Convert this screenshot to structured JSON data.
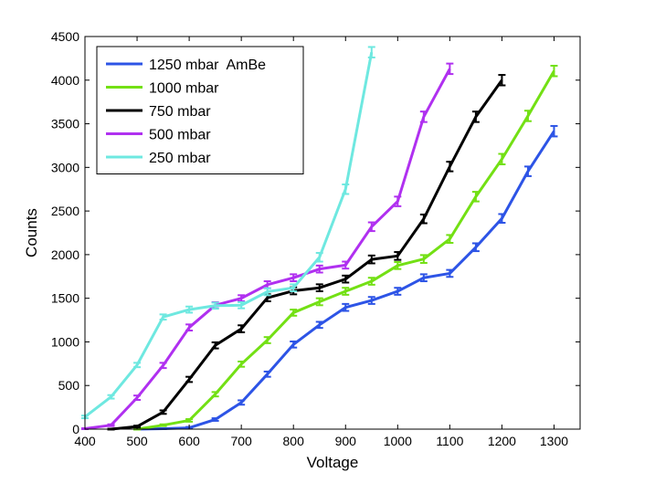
{
  "chart_data": {
    "type": "line",
    "title": "",
    "xlabel": "Voltage",
    "ylabel": "Counts",
    "xlim": [
      400,
      1350
    ],
    "ylim": [
      0,
      4500
    ],
    "xticks": [
      400,
      500,
      600,
      700,
      800,
      900,
      1000,
      1100,
      1200,
      1300
    ],
    "yticks": [
      0,
      500,
      1000,
      1500,
      2000,
      2500,
      3000,
      3500,
      4000,
      4500
    ],
    "legend_position": "top-left",
    "grid": false,
    "series": [
      {
        "name": "1250 mbar  AmBe",
        "color": "#2d54e6",
        "x": [
          500,
          550,
          600,
          650,
          700,
          750,
          800,
          850,
          900,
          950,
          1000,
          1050,
          1100,
          1150,
          1200,
          1250,
          1300
        ],
        "values": [
          0,
          5,
          15,
          110,
          305,
          630,
          970,
          1195,
          1395,
          1475,
          1580,
          1735,
          1785,
          2085,
          2415,
          2955,
          3415
        ],
        "errors": [
          5,
          5,
          10,
          15,
          25,
          30,
          35,
          35,
          40,
          40,
          40,
          40,
          40,
          45,
          50,
          55,
          60
        ]
      },
      {
        "name": "1000 mbar",
        "color": "#73e014",
        "x": [
          500,
          550,
          600,
          650,
          700,
          750,
          800,
          850,
          900,
          950,
          1000,
          1050,
          1100,
          1150,
          1200,
          1250,
          1300
        ],
        "values": [
          0,
          45,
          100,
          400,
          745,
          1020,
          1335,
          1460,
          1580,
          1695,
          1875,
          1950,
          2180,
          2665,
          3095,
          3590,
          4105
        ],
        "errors": [
          5,
          10,
          15,
          25,
          30,
          35,
          35,
          40,
          40,
          40,
          40,
          45,
          45,
          55,
          60,
          60,
          60
        ]
      },
      {
        "name": "750 mbar",
        "color": "#000000",
        "x": [
          450,
          500,
          550,
          600,
          650,
          700,
          750,
          800,
          850,
          900,
          950,
          1000,
          1050,
          1100,
          1150,
          1200
        ],
        "values": [
          0,
          30,
          195,
          570,
          960,
          1150,
          1505,
          1585,
          1620,
          1720,
          1945,
          1985,
          2410,
          3010,
          3580,
          4000
        ],
        "errors": [
          5,
          10,
          20,
          30,
          35,
          40,
          40,
          40,
          40,
          40,
          45,
          45,
          50,
          55,
          60,
          60
        ]
      },
      {
        "name": "500 mbar",
        "color": "#b030f0",
        "x": [
          400,
          450,
          500,
          550,
          600,
          650,
          700,
          750,
          800,
          850,
          900,
          950,
          1000,
          1050,
          1100
        ],
        "values": [
          5,
          45,
          360,
          730,
          1165,
          1420,
          1500,
          1655,
          1735,
          1835,
          1880,
          2320,
          2610,
          3580,
          4130
        ],
        "errors": [
          5,
          10,
          25,
          30,
          35,
          35,
          35,
          40,
          40,
          40,
          40,
          50,
          55,
          60,
          60
        ]
      },
      {
        "name": "250 mbar",
        "color": "#6ee8e0",
        "x": [
          400,
          450,
          500,
          550,
          600,
          650,
          700,
          750,
          800,
          850,
          900,
          950
        ],
        "values": [
          140,
          370,
          735,
          1285,
          1370,
          1415,
          1420,
          1575,
          1620,
          1970,
          2750,
          4320
        ],
        "errors": [
          15,
          20,
          25,
          30,
          35,
          35,
          35,
          40,
          40,
          50,
          55,
          60
        ]
      }
    ]
  }
}
